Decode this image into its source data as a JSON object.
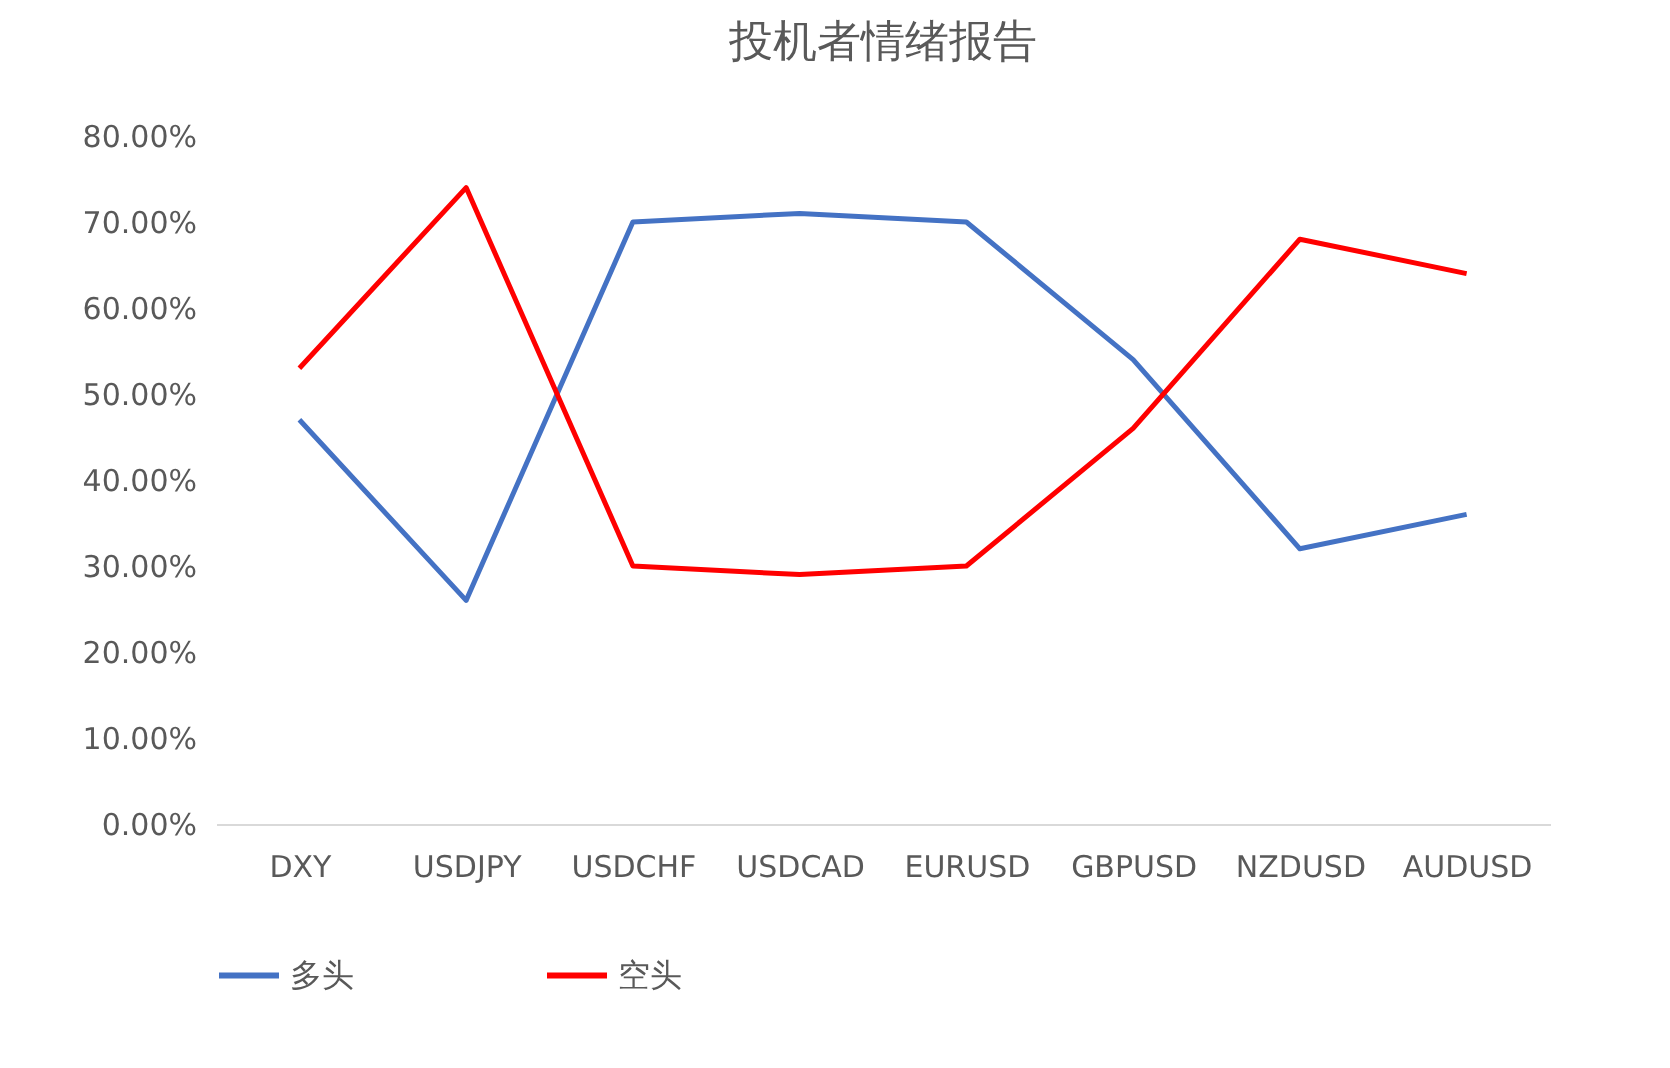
{
  "chart_data": {
    "type": "line",
    "title": "投机者情绪报告",
    "categories": [
      "DXY",
      "USDJPY",
      "USDCHF",
      "USDCAD",
      "EURUSD",
      "GBPUSD",
      "NZDUSD",
      "AUDUSD"
    ],
    "series": [
      {
        "name": "多头",
        "color": "#4472c4",
        "values": [
          47,
          26,
          70,
          71,
          70,
          54,
          32,
          36
        ]
      },
      {
        "name": "空头",
        "color": "#ff0000",
        "values": [
          53,
          74,
          30,
          29,
          30,
          46,
          68,
          64
        ]
      }
    ],
    "ylim": [
      0,
      80
    ],
    "yticks": [
      {
        "value": 0,
        "label": "0.00%"
      },
      {
        "value": 10,
        "label": "10.00%"
      },
      {
        "value": 20,
        "label": "20.00%"
      },
      {
        "value": 30,
        "label": "30.00%"
      },
      {
        "value": 40,
        "label": "40.00%"
      },
      {
        "value": 50,
        "label": "50.00%"
      },
      {
        "value": 60,
        "label": "60.00%"
      },
      {
        "value": 70,
        "label": "70.00%"
      },
      {
        "value": 80,
        "label": "80.00%"
      }
    ],
    "grid": false,
    "legend": "bottom",
    "marker": "none",
    "line_style": "solid"
  }
}
